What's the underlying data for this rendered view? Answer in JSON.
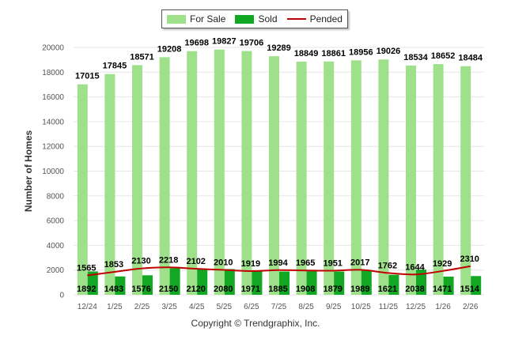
{
  "colors": {
    "for_sale": "#9fe08a",
    "sold": "#13a823",
    "pended": "#c00000",
    "grid": "#e6e6e6",
    "axis_text": "#555555"
  },
  "legend": {
    "for_sale": "For Sale",
    "sold": "Sold",
    "pended": "Pended"
  },
  "footer": "Copyright © Trendgraphix, Inc.",
  "chart_data": {
    "type": "bar",
    "ylabel": "Number of Homes",
    "ylim": [
      0,
      20000
    ],
    "yticks": [
      "0",
      "2000",
      "4000",
      "6000",
      "8000",
      "10000",
      "12000",
      "14000",
      "16000",
      "18000",
      "20000"
    ],
    "grid": true,
    "legend_position": "top",
    "categories": [
      "12/24",
      "1/25",
      "2/25",
      "3/25",
      "4/25",
      "5/25",
      "6/25",
      "7/25",
      "8/25",
      "9/25",
      "10/25",
      "11/25",
      "12/25",
      "1/26",
      "2/26"
    ],
    "series": [
      {
        "name": "For Sale",
        "kind": "bar",
        "values": [
          17015,
          17845,
          18571,
          19208,
          19698,
          19827,
          19706,
          19289,
          18849,
          18861,
          18956,
          19026,
          18534,
          18652,
          18484
        ]
      },
      {
        "name": "Sold",
        "kind": "bar",
        "values": [
          1892,
          1483,
          1576,
          2150,
          2120,
          2080,
          1971,
          1885,
          1908,
          1879,
          1989,
          1621,
          2038,
          1471,
          1514
        ]
      },
      {
        "name": "Pended",
        "kind": "line",
        "values": [
          1565,
          1853,
          2130,
          2218,
          2102,
          2010,
          1919,
          1994,
          1965,
          1951,
          2017,
          1762,
          1644,
          1929,
          2310
        ]
      }
    ]
  }
}
